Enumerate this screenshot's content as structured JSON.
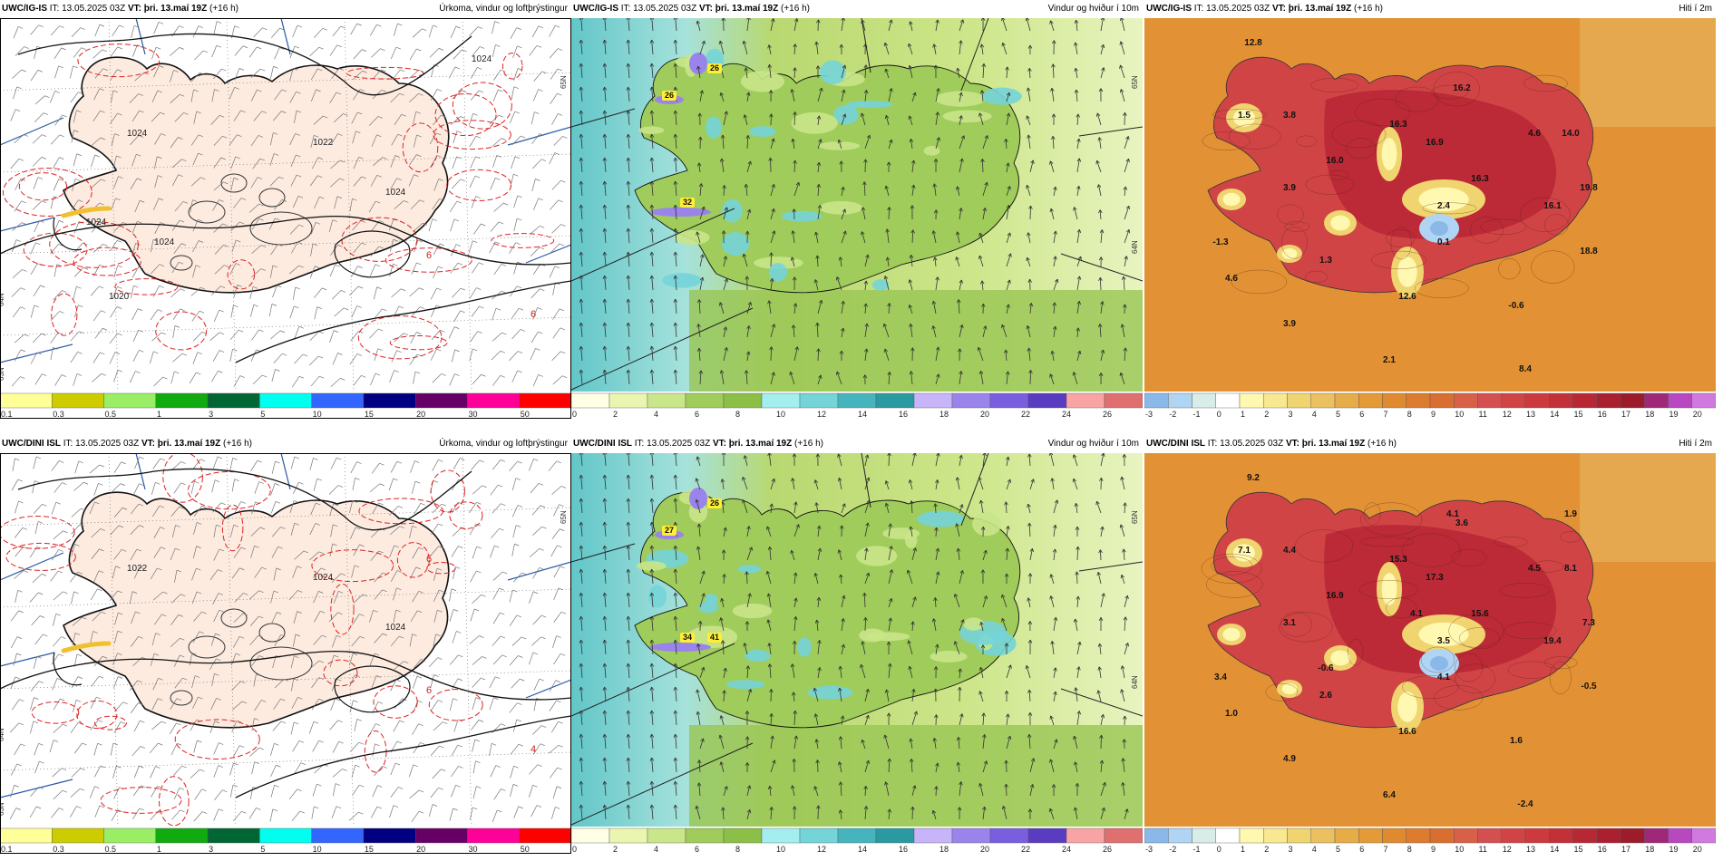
{
  "panels": [
    {
      "id": "p11",
      "model": "UWC/IG-IS",
      "it_label": "IT:",
      "it": "13.05.2025 03Z",
      "vt_label": "VT:",
      "vt": "þri. 13.maí 19Z",
      "lead": "(+16 h)",
      "field": "Úrkoma, vindur og loftþrýstingur",
      "type": "precip",
      "pressure_labels": [
        "1024",
        "1022",
        "1024",
        "1024",
        "1024",
        "1024",
        "1020"
      ],
      "red_labels": [
        "6",
        "6"
      ],
      "latlon_labels": [
        "65N",
        "64N",
        "63N"
      ]
    },
    {
      "id": "p12",
      "model": "UWC/IG-IS",
      "it_label": "IT:",
      "it": "13.05.2025 03Z",
      "vt_label": "VT:",
      "vt": "þri. 13.maí 19Z",
      "lead": "(+16 h)",
      "field": "Vindur og hviður í 10m",
      "type": "wind",
      "gust_labels": [
        "26",
        "26",
        "32"
      ],
      "latlon_labels": [
        "65N",
        "64N"
      ]
    },
    {
      "id": "p13",
      "model": "UWC/IG-IS",
      "it_label": "IT:",
      "it": "13.05.2025 03Z",
      "vt_label": "VT:",
      "vt": "þri. 13.maí 19Z",
      "lead": "(+16 h)",
      "field": "Hiti í 2m",
      "type": "temp",
      "temp_labels": [
        "12.8",
        "1.5",
        "3.8",
        "3.9",
        "-1.3",
        "4.6",
        "1.3",
        "3.9",
        "2.1",
        "16.0",
        "16.3",
        "16.9",
        "16.2",
        "16.3",
        "4.6",
        "14.0",
        "19.8",
        "16.1",
        "2.4",
        "0.1",
        "12.6",
        "-0.6",
        "18.8",
        "8.4"
      ]
    },
    {
      "id": "p21",
      "model": "UWC/DINI ISL",
      "it_label": "IT:",
      "it": "13.05.2025 03Z",
      "vt_label": "VT:",
      "vt": "þri. 13.maí 19Z",
      "lead": "(+16 h)",
      "field": "Úrkoma, vindur og loftþrýstingur",
      "type": "precip",
      "pressure_labels": [
        "1022",
        "1024",
        "1024"
      ],
      "red_labels": [
        "6",
        "4",
        "6"
      ],
      "latlon_labels": [
        "65N",
        "64N",
        "63N"
      ]
    },
    {
      "id": "p22",
      "model": "UWC/DINI ISL",
      "it_label": "IT:",
      "it": "13.05.2025 03Z",
      "vt_label": "VT:",
      "vt": "þri. 13.maí 19Z",
      "lead": "(+16 h)",
      "field": "Vindur og hviður í 10m",
      "type": "wind",
      "gust_labels": [
        "26",
        "27",
        "34",
        "41"
      ],
      "latlon_labels": [
        "65N",
        "64N"
      ]
    },
    {
      "id": "p23",
      "model": "UWC/DINI ISL",
      "it_label": "IT:",
      "it": "13.05.2025 03Z",
      "vt_label": "VT:",
      "vt": "þri. 13.maí 19Z",
      "lead": "(+16 h)",
      "field": "Hiti í 2m",
      "type": "temp",
      "temp_labels": [
        "9.2",
        "7.1",
        "4.4",
        "3.1",
        "3.4",
        "1.0",
        "2.6",
        "4.9",
        "6.4",
        "16.9",
        "15.3",
        "17.3",
        "3.6",
        "15.6",
        "4.5",
        "8.1",
        "7.3",
        "19.4",
        "3.5",
        "4.1",
        "16.6",
        "1.6",
        "-0.5",
        "-2.4",
        "4.1",
        "-0.6",
        "4.1",
        "1.9"
      ]
    }
  ],
  "colorbars": {
    "precip": {
      "ticks": [
        "0.1",
        "0.3",
        "0.5",
        "1",
        "3",
        "5",
        "10",
        "15",
        "20",
        "30",
        "50"
      ],
      "colors": [
        "#ffff99",
        "#cccc00",
        "#99ee66",
        "#11aa11",
        "#006633",
        "#00ffee",
        "#3366ff",
        "#000080",
        "#660066",
        "#ff0099",
        "#ff0000"
      ]
    },
    "wind": {
      "ticks": [
        "0",
        "2",
        "4",
        "6",
        "8",
        "10",
        "12",
        "14",
        "16",
        "18",
        "20",
        "22",
        "24",
        "26"
      ],
      "colors": [
        "#ffffe6",
        "#eaf5b0",
        "#c9e68a",
        "#9fcc5a",
        "#8cbf48",
        "#a4eef0",
        "#74d4d8",
        "#46b4bc",
        "#2a9aa0",
        "#c8b4f8",
        "#9a84ec",
        "#7a5ee0",
        "#5a3cc0",
        "#f8a4a4",
        "#e07070"
      ]
    },
    "temp": {
      "ticks": [
        "-3",
        "-2",
        "-1",
        "0",
        "1",
        "2",
        "3",
        "4",
        "5",
        "6",
        "7",
        "8",
        "9",
        "10",
        "11",
        "12",
        "13",
        "14",
        "15",
        "16",
        "17",
        "18",
        "19",
        "20"
      ],
      "colors": [
        "#8ab8e8",
        "#b0d4f4",
        "#d8ece8",
        "#ffffff",
        "#fff8b0",
        "#f8e890",
        "#f0d470",
        "#eac060",
        "#e6ac48",
        "#e49a38",
        "#e08a30",
        "#dc7c30",
        "#d86e30",
        "#d86048",
        "#d45050",
        "#d04446",
        "#cc3a3e",
        "#c23038",
        "#b82834",
        "#aa2030",
        "#9c1c2c",
        "#a02878",
        "#b848c0",
        "#d07ae0"
      ]
    }
  }
}
